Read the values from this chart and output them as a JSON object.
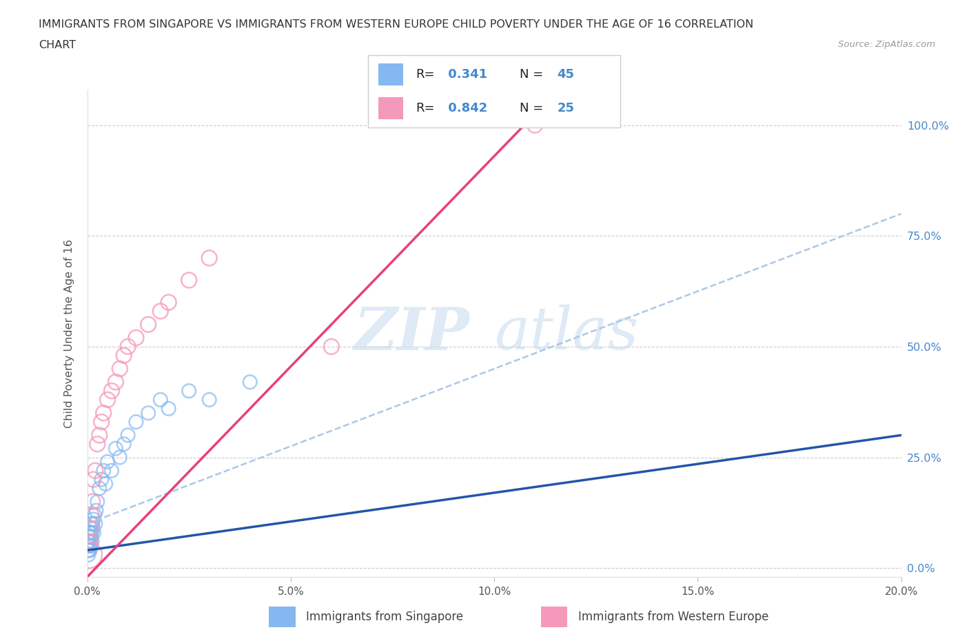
{
  "title_line1": "IMMIGRANTS FROM SINGAPORE VS IMMIGRANTS FROM WESTERN EUROPE CHILD POVERTY UNDER THE AGE OF 16 CORRELATION",
  "title_line2": "CHART",
  "source_text": "Source: ZipAtlas.com",
  "ylabel": "Child Poverty Under the Age of 16",
  "watermark_zip": "ZIP",
  "watermark_atlas": "atlas",
  "singapore_R": 0.341,
  "singapore_N": 45,
  "western_europe_R": 0.842,
  "western_europe_N": 25,
  "singapore_color": "#85b8f0",
  "western_europe_color": "#f599bb",
  "singapore_line_color": "#2255aa",
  "western_europe_line_color": "#e8407a",
  "dashed_line_color": "#aac8e8",
  "blue_text_color": "#4488cc",
  "axis_text_color": "#555555",
  "title_color": "#333333",
  "sg_x": [
    0.0002,
    0.0003,
    0.0003,
    0.0004,
    0.0004,
    0.0005,
    0.0005,
    0.0005,
    0.0005,
    0.0006,
    0.0006,
    0.0007,
    0.0007,
    0.0008,
    0.0008,
    0.0009,
    0.001,
    0.001,
    0.0011,
    0.0012,
    0.0013,
    0.0014,
    0.0015,
    0.0016,
    0.0018,
    0.002,
    0.0022,
    0.0025,
    0.003,
    0.0035,
    0.004,
    0.0045,
    0.005,
    0.006,
    0.007,
    0.008,
    0.009,
    0.01,
    0.012,
    0.015,
    0.018,
    0.02,
    0.025,
    0.03,
    0.04
  ],
  "sg_y": [
    0.04,
    0.03,
    0.06,
    0.05,
    0.07,
    0.04,
    0.06,
    0.05,
    0.08,
    0.05,
    0.07,
    0.04,
    0.08,
    0.06,
    0.09,
    0.05,
    0.07,
    0.1,
    0.08,
    0.06,
    0.1,
    0.09,
    0.11,
    0.08,
    0.12,
    0.1,
    0.13,
    0.15,
    0.18,
    0.2,
    0.22,
    0.19,
    0.24,
    0.22,
    0.27,
    0.25,
    0.28,
    0.3,
    0.33,
    0.35,
    0.38,
    0.36,
    0.4,
    0.38,
    0.42
  ],
  "we_x": [
    0.0003,
    0.0005,
    0.0008,
    0.001,
    0.0013,
    0.0015,
    0.002,
    0.0025,
    0.003,
    0.0035,
    0.004,
    0.005,
    0.006,
    0.007,
    0.008,
    0.009,
    0.01,
    0.012,
    0.015,
    0.018,
    0.02,
    0.025,
    0.03,
    0.06,
    0.11
  ],
  "we_y": [
    0.03,
    0.06,
    0.09,
    0.12,
    0.15,
    0.2,
    0.22,
    0.28,
    0.3,
    0.33,
    0.35,
    0.38,
    0.4,
    0.42,
    0.45,
    0.48,
    0.5,
    0.52,
    0.55,
    0.58,
    0.6,
    0.65,
    0.7,
    0.5,
    1.0
  ],
  "xmin": 0.0,
  "xmax": 0.2,
  "ymin": -0.02,
  "ymax": 1.08,
  "yticks": [
    0.0,
    0.25,
    0.5,
    0.75,
    1.0
  ],
  "ytick_labels": [
    "0.0%",
    "25.0%",
    "50.0%",
    "75.0%",
    "100.0%"
  ],
  "xticks": [
    0.0,
    0.05,
    0.1,
    0.15,
    0.2
  ],
  "xtick_labels": [
    "0.0%",
    "5.0%",
    "10.0%",
    "15.0%",
    "20.0%"
  ],
  "background_color": "#ffffff",
  "grid_color": "#cccccc"
}
